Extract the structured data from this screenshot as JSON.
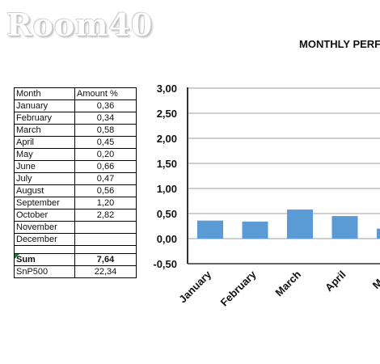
{
  "logo": "Room40",
  "chart_title": "MONTHLY PERFO",
  "table": {
    "headers": [
      "Month",
      "Amount %"
    ],
    "rows": [
      {
        "month": "January",
        "amount": "0,36"
      },
      {
        "month": "February",
        "amount": "0,34"
      },
      {
        "month": "March",
        "amount": "0,58"
      },
      {
        "month": "April",
        "amount": "0,45"
      },
      {
        "month": "May",
        "amount": "0,20"
      },
      {
        "month": "June",
        "amount": "0,66"
      },
      {
        "month": "July",
        "amount": "0,47"
      },
      {
        "month": "August",
        "amount": "0,56"
      },
      {
        "month": "September",
        "amount": "1,20"
      },
      {
        "month": "October",
        "amount": "2,82"
      },
      {
        "month": "November",
        "amount": ""
      },
      {
        "month": "December",
        "amount": ""
      }
    ],
    "sum_label": "Sum",
    "sum_value": "7,64",
    "benchmark_label": "SnP500",
    "benchmark_value": "22,34"
  },
  "chart_data": {
    "type": "bar",
    "title": "MONTHLY PERFO",
    "categories": [
      "January",
      "February",
      "March",
      "April",
      "May"
    ],
    "values": [
      0.36,
      0.34,
      0.58,
      0.45,
      0.2
    ],
    "ylim": [
      -0.5,
      3.0
    ],
    "yticks": [
      "3,00",
      "2,50",
      "2,00",
      "1,50",
      "1,00",
      "0,50",
      "0,00",
      "-0,50"
    ],
    "grid": true,
    "bar_color": "#5b9bd5"
  }
}
